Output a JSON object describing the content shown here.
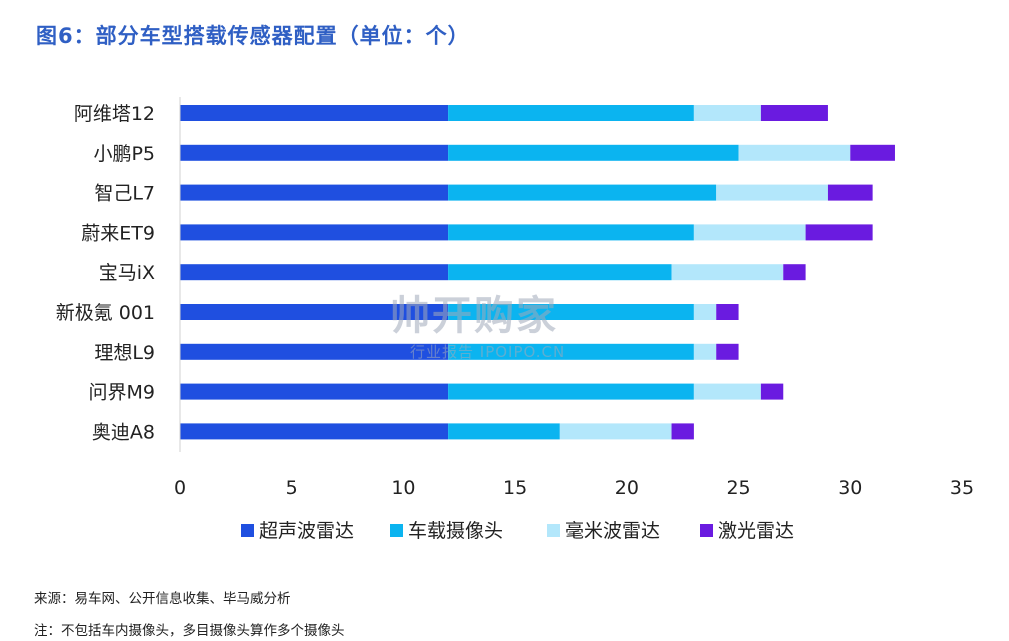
{
  "title": "图6：部分车型搭载传感器配置（单位：个）",
  "watermark": {
    "main": "帅开购家",
    "sub": "行业报告 IPOIPO.CN"
  },
  "notes": {
    "source": "来源：易车网、公开信息收集、毕马威分析",
    "note": "注：不包括车内摄像头，多目摄像头算作多个摄像头"
  },
  "chart_data": {
    "type": "bar",
    "orientation": "horizontal",
    "stacked": true,
    "categories": [
      "阿维塔12",
      "小鹏P5",
      "智己L7",
      "蔚来ET9",
      "宝马iX",
      "新极氪 001",
      "理想L9",
      "问界M9",
      "奥迪A8"
    ],
    "series": [
      {
        "name": "超声波雷达",
        "color": "#1f4fe0",
        "values": [
          12,
          12,
          12,
          12,
          12,
          12,
          12,
          12,
          12
        ]
      },
      {
        "name": "车载摄像头",
        "color": "#0bb4f0",
        "values": [
          11,
          13,
          12,
          11,
          10,
          11,
          11,
          11,
          5
        ]
      },
      {
        "name": "毫米波雷达",
        "color": "#b3e7fb",
        "values": [
          3,
          5,
          5,
          5,
          5,
          1,
          1,
          3,
          5
        ]
      },
      {
        "name": "激光雷达",
        "color": "#6a1be0",
        "values": [
          3,
          2,
          2,
          3,
          1,
          1,
          1,
          1,
          1
        ]
      }
    ],
    "xlim": [
      0,
      35
    ],
    "xticks": [
      0,
      5,
      10,
      15,
      20,
      25,
      30,
      35
    ],
    "xlabel": "",
    "ylabel": "",
    "grid": false,
    "legend_position": "bottom"
  }
}
